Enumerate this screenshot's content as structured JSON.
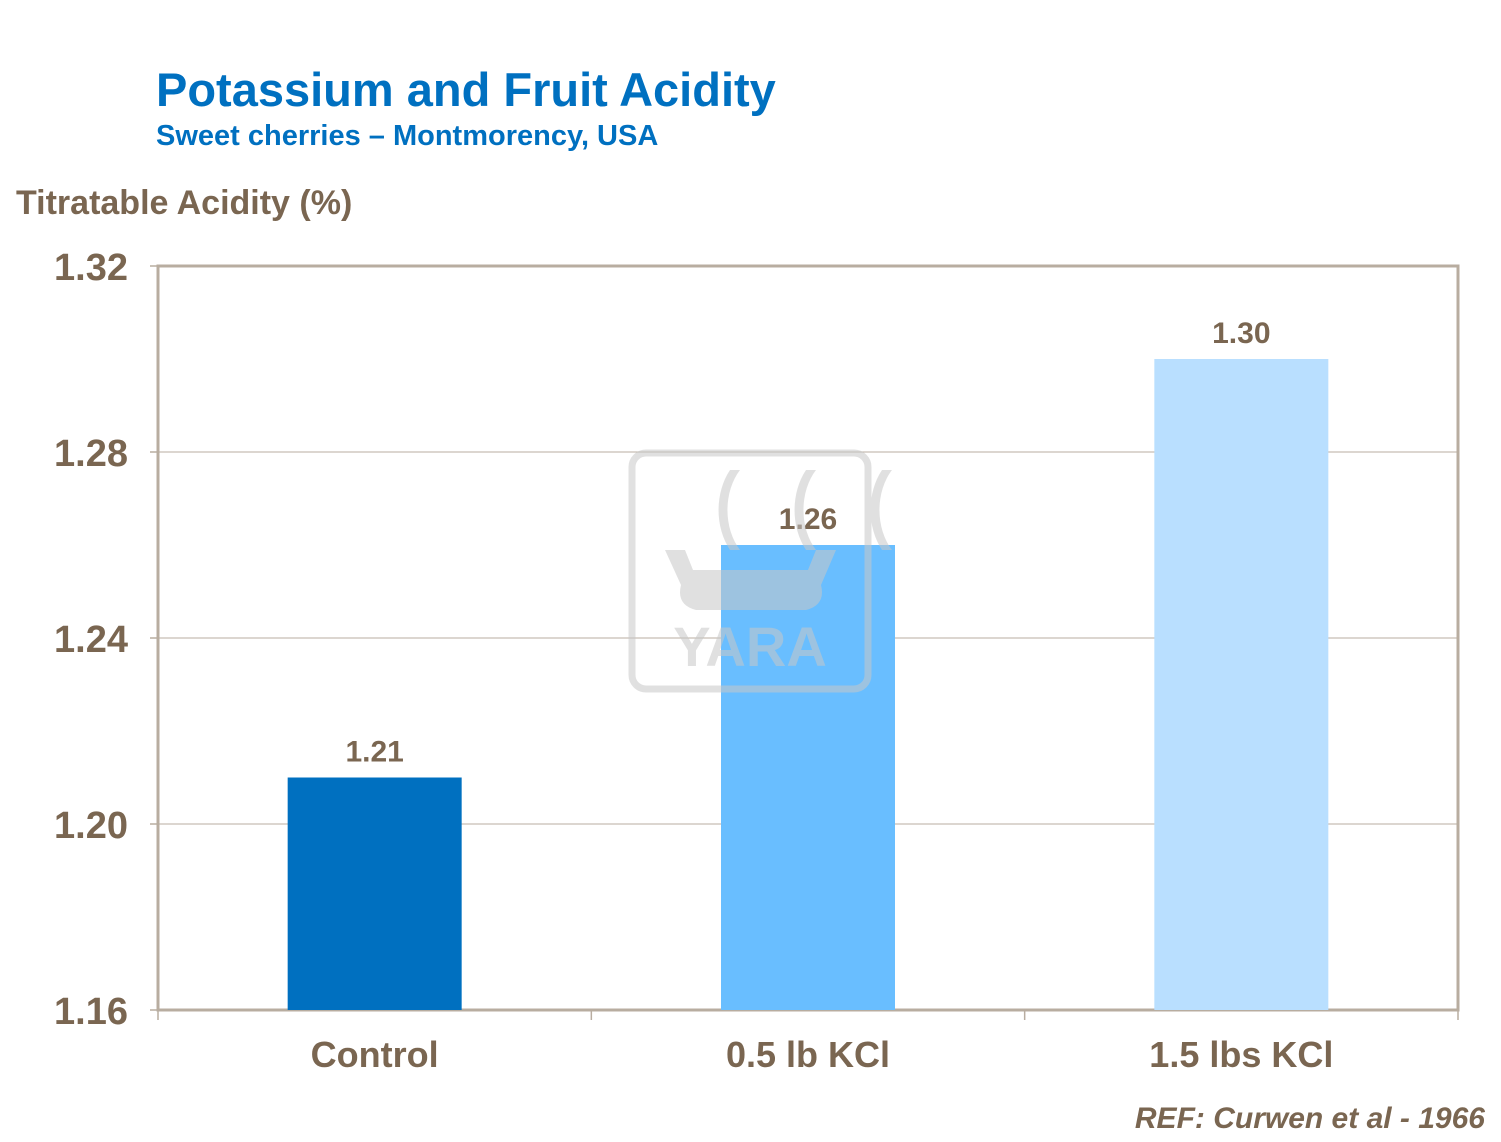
{
  "chart_data": {
    "type": "bar",
    "title": "Potassium and Fruit Acidity",
    "subtitle": "Sweet cherries – Montmorency, USA",
    "ylabel": "Titratable Acidity (%)",
    "xlabel": "",
    "categories": [
      "Control",
      "0.5 lb KCl",
      "1.5 lbs KCl"
    ],
    "values": [
      1.21,
      1.26,
      1.3
    ],
    "data_labels": [
      "1.21",
      "1.26",
      "1.30"
    ],
    "bar_colors": [
      "#0070C0",
      "#69BEFF",
      "#B9DFFF"
    ],
    "ylim": [
      1.16,
      1.32
    ],
    "yticks": [
      "1.16",
      "1.20",
      "1.24",
      "1.28",
      "1.32"
    ],
    "grid": true,
    "legend": "none"
  },
  "reference": "REF:  Curwen et al - 1966",
  "watermark": {
    "text": "YARA",
    "type": "logo"
  },
  "colors": {
    "title": "#0070C0",
    "text": "#7A6651",
    "axis": "#B8ADA0",
    "grid": "#B8ADA0"
  }
}
